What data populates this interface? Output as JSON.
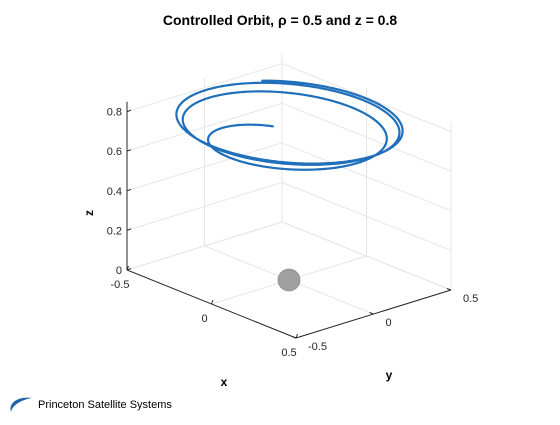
{
  "footer": {
    "company": "Princeton Satellite Systems",
    "logo_icon": "swoosh-logo-icon",
    "logo_color": "#1f63a8"
  },
  "chart_data": {
    "type": "line3d",
    "title": "Controlled Orbit, ρ = 0.5 and z = 0.8",
    "xlabel": "x",
    "ylabel": "y",
    "zlabel": "z",
    "xlim": [
      -0.5,
      0.5
    ],
    "ylim": [
      -0.5,
      0.5
    ],
    "zlim": [
      0,
      0.8
    ],
    "x_ticks": [
      "-0.5",
      "0",
      "0.5"
    ],
    "y_ticks": [
      "-0.5",
      "0",
      "0.5"
    ],
    "z_ticks": [
      "0",
      "0.2",
      "0.4",
      "0.6",
      "0.8"
    ],
    "grid": true,
    "series": [
      {
        "line_color": "#1f6fba",
        "orbit_radius": 0.5,
        "orbit_height": 0.8,
        "start_radius": 0.3,
        "start_height": 0.65,
        "turns": 3
      }
    ],
    "central_body": {
      "position": [
        0,
        0,
        0
      ],
      "color": "#a0a0a0"
    }
  }
}
